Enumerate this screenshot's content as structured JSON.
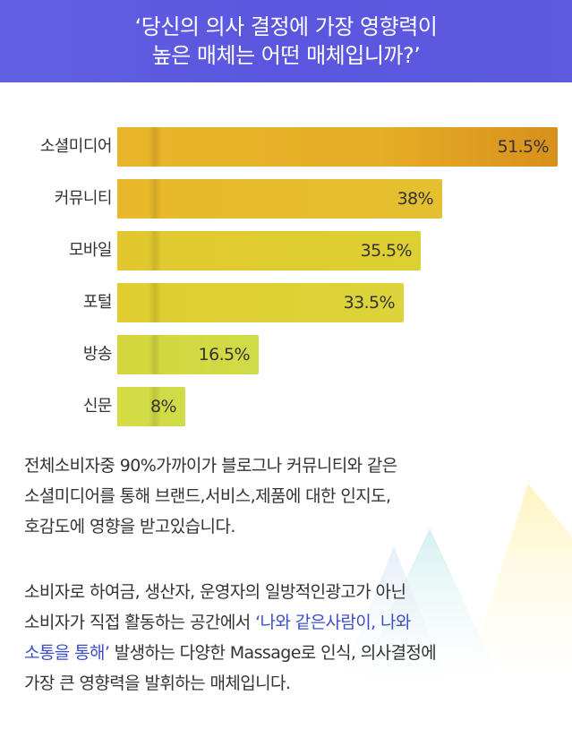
{
  "header": {
    "line1": "‘당신의 의사 결정에 가장 영향력이",
    "line2": "높은 매체는 어떤 매체입니까?’",
    "bg_color": "#5e5be0"
  },
  "chart_data": {
    "type": "bar",
    "orientation": "horizontal",
    "categories": [
      "소셜미디어",
      "커뮤니티",
      "모바일",
      "포털",
      "방송",
      "신문"
    ],
    "values": [
      51.5,
      38,
      35.5,
      33.5,
      16.5,
      8
    ],
    "value_labels": [
      "51.5%",
      "38%",
      "35.5%",
      "33.5%",
      "16.5%",
      "8%"
    ],
    "unit": "%",
    "xlim": [
      0,
      51.5
    ],
    "grid": false,
    "legend": "none",
    "colors": {
      "top_bar_start": "#e8b52a",
      "top_bar_end": "#d8901c",
      "mid_bar": "#e4c030",
      "low_bar": "#dcd43a",
      "lowest_bar": "#cfdc48"
    }
  },
  "body": {
    "para1_lines": [
      "전체소비자중 90%가까이가 블로그나 커뮤니티와 같은",
      "소셜미디어를 통해 브랜드,서비스,제품에 대한 인지도,",
      "호감도에 영향을 받고있습니다."
    ],
    "para2_line1": "소비자로 하여금, 생산자, 운영자의 일방적인광고가 아닌",
    "para2_line2_pre": "소비자가 직접 활동하는 공간에서 ",
    "para2_highlight_a": "‘나와 같은사람이, 나와",
    "para2_highlight_b": "소통을 통해’",
    "para2_line3_post": " 발생하는 다양한 Massage로 인식, 의사결정에",
    "para2_line4": "가장 큰 영향력을 발휘하는 매체입니다.",
    "highlight_color": "#3b4fc9"
  }
}
